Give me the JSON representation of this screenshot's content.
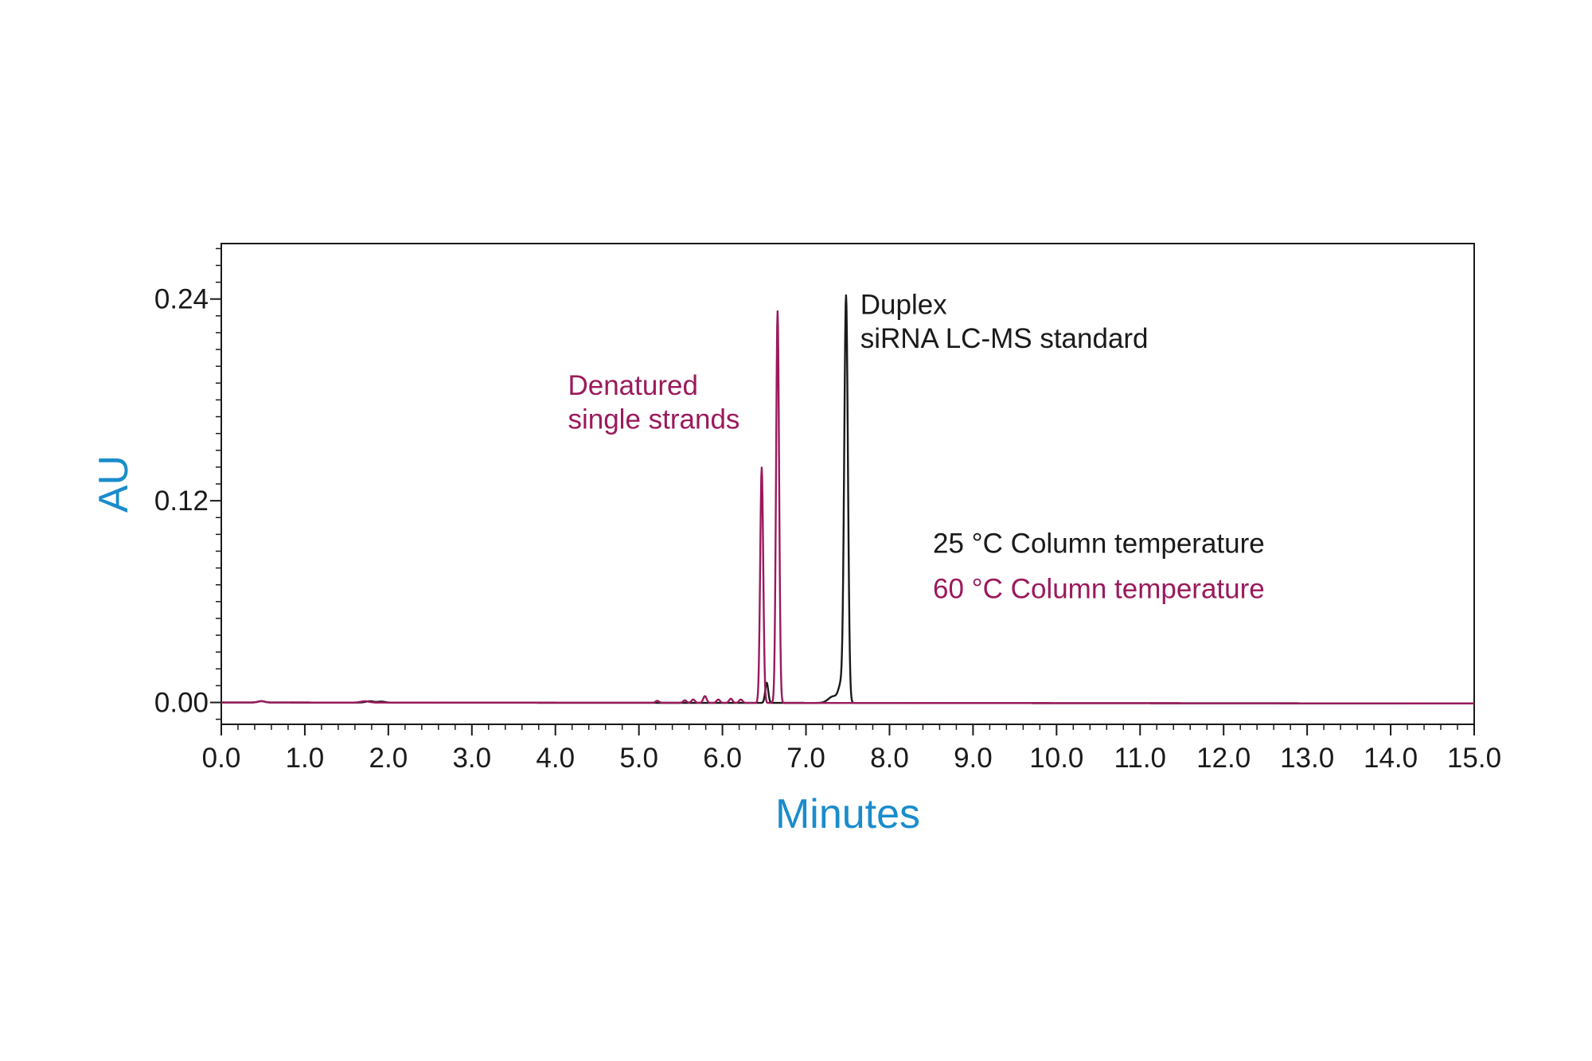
{
  "chart_data": {
    "type": "line",
    "title": "",
    "xlabel": "Minutes",
    "ylabel": "AU",
    "xlim": [
      0,
      15
    ],
    "ylim": [
      -0.013,
      0.273
    ],
    "x_ticks": [
      0,
      1,
      2,
      3,
      4,
      5,
      6,
      7,
      8,
      9,
      10,
      11,
      12,
      13,
      14,
      15
    ],
    "x_tick_labels": [
      "0.0",
      "1.0",
      "2.0",
      "3.0",
      "4.0",
      "5.0",
      "6.0",
      "7.0",
      "8.0",
      "9.0",
      "10.0",
      "11.0",
      "12.0",
      "13.0",
      "14.0",
      "15.0"
    ],
    "y_ticks": [
      0,
      0.12,
      0.24
    ],
    "y_tick_labels": [
      "0.00",
      "0.12",
      "0.24"
    ],
    "grid": false,
    "legend": "none",
    "series": [
      {
        "name": "25 °C Column temperature",
        "color": "#1a1a1a",
        "baseline": 0.0,
        "peaks": [
          {
            "x": 0.48,
            "height": 0.0008,
            "width": 0.04
          },
          {
            "x": 1.78,
            "height": 0.0008,
            "width": 0.05
          },
          {
            "x": 1.92,
            "height": 0.0006,
            "width": 0.04
          },
          {
            "x": 6.53,
            "height": 0.012,
            "width": 0.018
          },
          {
            "x": 7.33,
            "height": 0.004,
            "width": 0.06
          },
          {
            "x": 7.42,
            "height": 0.01,
            "width": 0.03
          },
          {
            "x": 7.48,
            "height": 0.241,
            "width": 0.022
          }
        ]
      },
      {
        "name": "60 °C Column temperature",
        "color": "#9a1a5c",
        "baseline": 0.0,
        "peaks": [
          {
            "x": 0.48,
            "height": 0.0008,
            "width": 0.04
          },
          {
            "x": 1.72,
            "height": 0.0008,
            "width": 0.05
          },
          {
            "x": 5.22,
            "height": 0.0012,
            "width": 0.02
          },
          {
            "x": 5.55,
            "height": 0.0015,
            "width": 0.02
          },
          {
            "x": 5.65,
            "height": 0.002,
            "width": 0.02
          },
          {
            "x": 5.79,
            "height": 0.004,
            "width": 0.02
          },
          {
            "x": 5.95,
            "height": 0.002,
            "width": 0.02
          },
          {
            "x": 6.1,
            "height": 0.0025,
            "width": 0.02
          },
          {
            "x": 6.22,
            "height": 0.002,
            "width": 0.02
          },
          {
            "x": 6.47,
            "height": 0.14,
            "width": 0.018
          },
          {
            "x": 6.66,
            "height": 0.233,
            "width": 0.018
          }
        ]
      }
    ],
    "annotations": [
      {
        "id": "duplex-line-1",
        "text": "Duplex",
        "x": 7.65,
        "y": 0.231,
        "color": "#1a1a1a"
      },
      {
        "id": "duplex-line-2",
        "text": "siRNA LC-MS standard",
        "x": 7.65,
        "y": 0.211,
        "color": "#1a1a1a"
      },
      {
        "id": "denatured-line-1",
        "text": "Denatured",
        "x": 4.15,
        "y": 0.183,
        "color": "#9a1a5c"
      },
      {
        "id": "denatured-line-2",
        "text": "single strands",
        "x": 4.15,
        "y": 0.163,
        "color": "#9a1a5c"
      },
      {
        "id": "legend-25c",
        "text": "25 °C Column temperature",
        "x": 8.52,
        "y": 0.089,
        "color": "#1a1a1a"
      },
      {
        "id": "legend-60c",
        "text": "60 °C Column temperature",
        "x": 8.52,
        "y": 0.062,
        "color": "#9a1a5c"
      }
    ],
    "axis_title_color": "#1a8ccc"
  }
}
